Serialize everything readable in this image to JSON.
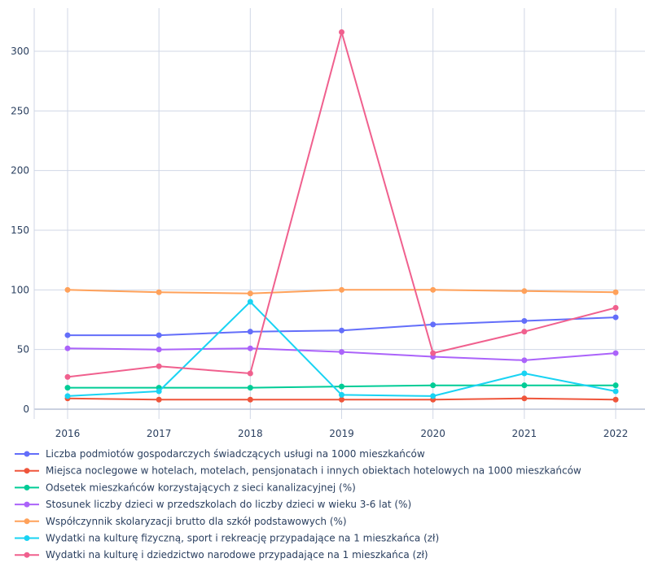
{
  "chart_data": {
    "type": "line",
    "x": [
      "2016",
      "2017",
      "2018",
      "2019",
      "2020",
      "2021",
      "2022"
    ],
    "yticks": [
      "0",
      "50",
      "100",
      "150",
      "200",
      "250",
      "300"
    ],
    "ylim": [
      -5,
      330
    ],
    "grid": true,
    "legend_position": "bottom",
    "series": [
      {
        "name": "Liczba podmiotów gospodarczych świadczących usługi na 1000 mieszkańców",
        "color": "#636efa",
        "values": [
          62,
          62,
          65,
          66,
          71,
          74,
          77
        ]
      },
      {
        "name": "Miejsca noclegowe w hotelach, motelach, pensjonatach i innych obiektach hotelowych na 1000 mieszkańców",
        "color": "#ef553b",
        "values": [
          9,
          8,
          8,
          8,
          8,
          9,
          8
        ]
      },
      {
        "name": "Odsetek mieszkańców korzystających z sieci kanalizacyjnej (%)",
        "color": "#00cc96",
        "values": [
          18,
          18,
          18,
          19,
          20,
          20,
          20
        ]
      },
      {
        "name": "Stosunek liczby dzieci w przedszkolach do liczby dzieci w wieku 3-6 lat (%)",
        "color": "#ab63fa",
        "values": [
          51,
          50,
          51,
          48,
          44,
          41,
          47
        ]
      },
      {
        "name": "Współczynnik skolaryzacji brutto dla szkół podstawowych (%)",
        "color": "#ffa15a",
        "values": [
          100,
          98,
          97,
          100,
          100,
          99,
          98
        ]
      },
      {
        "name": "Wydatki na kulturę fizyczną, sport i rekreację przypadające na 1 mieszkańca (zł)",
        "color": "#19d3f3",
        "values": [
          11,
          15,
          90,
          12,
          11,
          30,
          15
        ]
      },
      {
        "name": "Wydatki na kulturę i dziedzictwo narodowe przypadające na 1 mieszkańca (zł)",
        "color": "#f0608e",
        "values": [
          27,
          36,
          30,
          316,
          47,
          65,
          85
        ]
      }
    ]
  }
}
